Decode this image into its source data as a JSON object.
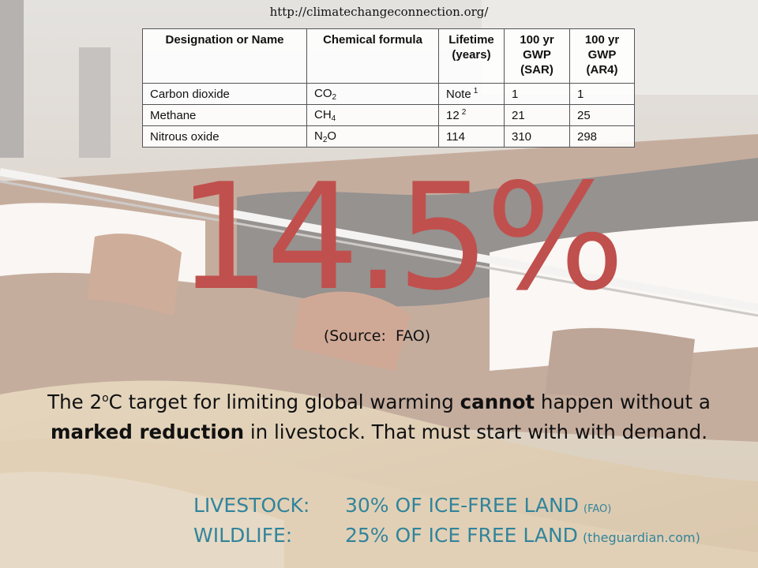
{
  "url": "http://climatechangeconnection.org/",
  "table": {
    "headers": {
      "designation": "Designation or Name",
      "formula": "Chemical formula",
      "lifetime_1": "Lifetime",
      "lifetime_2": "(years)",
      "sar_1": "100 yr",
      "sar_2": "GWP",
      "sar_3": "(SAR)",
      "ar4_1": "100 yr",
      "ar4_2": "GWP",
      "ar4_3": "(AR4)"
    },
    "rows": [
      {
        "name": "Carbon dioxide",
        "formula_base": "CO",
        "formula_sub": "2",
        "formula_tail": "",
        "lifetime": "Note",
        "lifetime_note": "1",
        "gwp_sar": "1",
        "gwp_ar4": "1"
      },
      {
        "name": "Methane",
        "formula_base": "CH",
        "formula_sub": "4",
        "formula_tail": "",
        "lifetime": "12",
        "lifetime_note": "2",
        "gwp_sar": "21",
        "gwp_ar4": "25"
      },
      {
        "name": "Nitrous oxide",
        "formula_base": "N",
        "formula_sub": "2",
        "formula_tail": "O",
        "lifetime": "114",
        "lifetime_note": "",
        "gwp_sar": "310",
        "gwp_ar4": "298"
      }
    ]
  },
  "headline": "14.5%",
  "source": {
    "label": "(Source:",
    "value": "FAO)"
  },
  "paragraph": {
    "t1": "The 2",
    "sup": "o",
    "t2": "C target for limiting global warming ",
    "b1": "cannot",
    "t3": " happen without a ",
    "b2": "marked reduction",
    "t4": " in livestock.  That must start with with demand."
  },
  "stats": [
    {
      "label": "LIVESTOCK:",
      "value": "30% OF ICE-FREE LAND",
      "source": "(FAO)"
    },
    {
      "label": "WILDLIFE:",
      "value": "25% OF ICE FREE LAND",
      "source": "(theguardian.com)"
    }
  ],
  "colors": {
    "headline": "#c0504d",
    "stats": "#31849b"
  }
}
